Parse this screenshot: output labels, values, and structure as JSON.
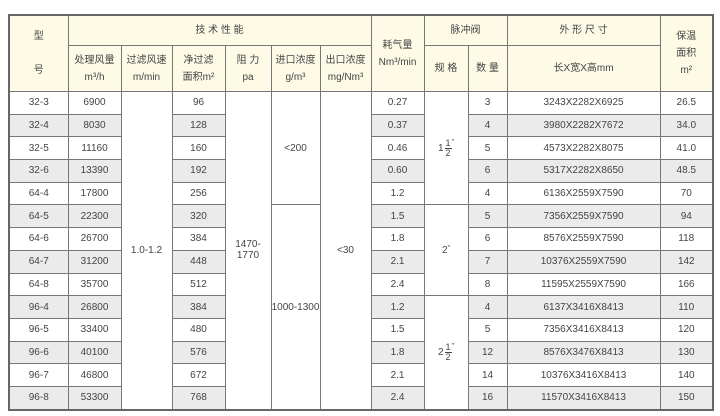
{
  "headers": {
    "model": "型\n号",
    "model_a": "型",
    "model_b": "号",
    "tech": "技 术 性 能",
    "airflow": "处理风量",
    "airflow_unit": "m³/h",
    "velocity": "过滤风速",
    "velocity_unit": "m/min",
    "area": "净过滤",
    "area_unit": "面积m²",
    "resistance": "阻 力",
    "resistance_unit": "pa",
    "inlet": "进口浓度",
    "inlet_unit": "g/m³",
    "outlet": "出口浓度",
    "outlet_unit": "mg/Nm³",
    "air_consumption": "耗气量",
    "air_consumption_unit": "Nm³/min",
    "valve": "脉冲阀",
    "valve_spec": "规 格",
    "valve_qty": "数 量",
    "dimensions": "外 形 尺 寸",
    "dimensions_unit": "长X宽X高mm",
    "insulation": "保温",
    "insulation_b": "面积",
    "insulation_unit": "m²"
  },
  "merged": {
    "velocity": "1.0-1.2",
    "resistance": "1470-1770",
    "inlet_1": "<200",
    "inlet_2": "1000-1300",
    "outlet": "<30",
    "valve_1": {
      "whole": "1",
      "num": "1",
      "den": "2",
      "mark": "\""
    },
    "valve_2": {
      "whole": "2",
      "mark": "\""
    },
    "valve_3": {
      "whole": "2",
      "num": "1",
      "den": "2",
      "mark": "\""
    }
  },
  "rows": [
    {
      "model": "32-3",
      "airflow": "6900",
      "area": "96",
      "air": "0.27",
      "qty": "3",
      "dim": "3243X2282X6925",
      "ins": "26.5"
    },
    {
      "model": "32-4",
      "airflow": "8030",
      "area": "128",
      "air": "0.37",
      "qty": "4",
      "dim": "3980X2282X7672",
      "ins": "34.0"
    },
    {
      "model": "32-5",
      "airflow": "11160",
      "area": "160",
      "air": "0.46",
      "qty": "5",
      "dim": "4573X2282X8075",
      "ins": "41.0"
    },
    {
      "model": "32-6",
      "airflow": "13390",
      "area": "192",
      "air": "0.60",
      "qty": "6",
      "dim": "5317X2282X8650",
      "ins": "48.5"
    },
    {
      "model": "64-4",
      "airflow": "17800",
      "area": "256",
      "air": "1.2",
      "qty": "4",
      "dim": "6136X2559X7590",
      "ins": "70"
    },
    {
      "model": "64-5",
      "airflow": "22300",
      "area": "320",
      "air": "1.5",
      "qty": "5",
      "dim": "7356X2559X7590",
      "ins": "94"
    },
    {
      "model": "64-6",
      "airflow": "26700",
      "area": "384",
      "air": "1.8",
      "qty": "6",
      "dim": "8576X2559X7590",
      "ins": "118"
    },
    {
      "model": "64-7",
      "airflow": "31200",
      "area": "448",
      "air": "2.1",
      "qty": "7",
      "dim": "10376X2559X7590",
      "ins": "142"
    },
    {
      "model": "64-8",
      "airflow": "35700",
      "area": "512",
      "air": "2.4",
      "qty": "8",
      "dim": "11595X2559X7590",
      "ins": "166"
    },
    {
      "model": "96-4",
      "airflow": "26800",
      "area": "384",
      "air": "1.2",
      "qty": "4",
      "dim": "6137X3416X8413",
      "ins": "110"
    },
    {
      "model": "96-5",
      "airflow": "33400",
      "area": "480",
      "air": "1.5",
      "qty": "5",
      "dim": "7356X3416X8413",
      "ins": "120"
    },
    {
      "model": "96-6",
      "airflow": "40100",
      "area": "576",
      "air": "1.8",
      "qty": "12",
      "dim": "8576X3476X8413",
      "ins": "130"
    },
    {
      "model": "96-7",
      "airflow": "46800",
      "area": "672",
      "air": "2.1",
      "qty": "14",
      "dim": "10376X3416X8413",
      "ins": "140"
    },
    {
      "model": "96-8",
      "airflow": "53300",
      "area": "768",
      "air": "2.4",
      "qty": "16",
      "dim": "11570X3416X8413",
      "ins": "150"
    }
  ]
}
